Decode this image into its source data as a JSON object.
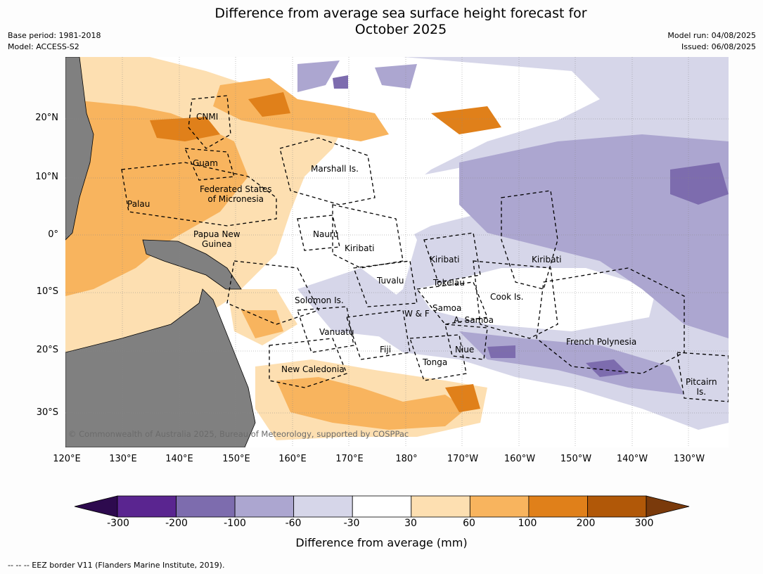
{
  "title": {
    "line1": "Difference from average sea surface height forecast for",
    "line2": "October 2025"
  },
  "meta": {
    "base_period": "Base period: 1981-2018",
    "model": "Model: ACCESS-S2",
    "model_run": "Model run: 04/08/2025",
    "issued": "Issued: 06/08/2025"
  },
  "axes": {
    "latitude_labels": [
      "20°N",
      "10°N",
      "0°",
      "10°S",
      "20°S",
      "30°S"
    ],
    "longitude_labels": [
      "120°E",
      "130°E",
      "140°E",
      "150°E",
      "160°E",
      "170°E",
      "180°",
      "170°W",
      "160°W",
      "150°W",
      "140°W",
      "130°W"
    ]
  },
  "regions": {
    "cnmi": "CNMI",
    "guam": "Guam",
    "marshall": "Marshall Is.",
    "fsm_1": "Federated States",
    "fsm_2": "of Micronesia",
    "palau": "Palau",
    "nauru": "Nauru",
    "png_1": "Papua New",
    "png_2": "Guinea",
    "kiribati_west": "Kiribati",
    "kiribati_central": "Kiribati",
    "kiribati_east": "Kiribati",
    "tuvalu": "Tuvalu",
    "tokelau": "Tokelau",
    "cook": "Cook Is.",
    "solomon": "Solomon Is.",
    "wallis": "W & F",
    "samoa": "Samoa",
    "american_samoa": "A. Samoa",
    "vanuatu": "Vanuatu",
    "fiji": "Fiji",
    "niue": "Niue",
    "french_polynesia": "French Polynesia",
    "tonga": "Tonga",
    "new_caledonia": "New Caledonia",
    "pitcairn_1": "Pitcairn",
    "pitcairn_2": "Is."
  },
  "copyright": "© Commonwealth of Australia 2025, Bureau of Meteorology, supported by COSPPac",
  "colorbar": {
    "ticks": [
      "-300",
      "-200",
      "-100",
      "-60",
      "-30",
      "30",
      "60",
      "100",
      "200",
      "300"
    ],
    "colors": [
      "#2d0a4e",
      "#5a2590",
      "#7d6cae",
      "#aca6d0",
      "#d6d6e9",
      "#ffffff",
      "#fddfb1",
      "#f8b45e",
      "#e0801a",
      "#b15808",
      "#7a3a0b"
    ],
    "label": "Difference from average (mm)"
  },
  "footnote": "--  --  -- EEZ border V11 (Flanders Marine Institute, 2019)."
}
